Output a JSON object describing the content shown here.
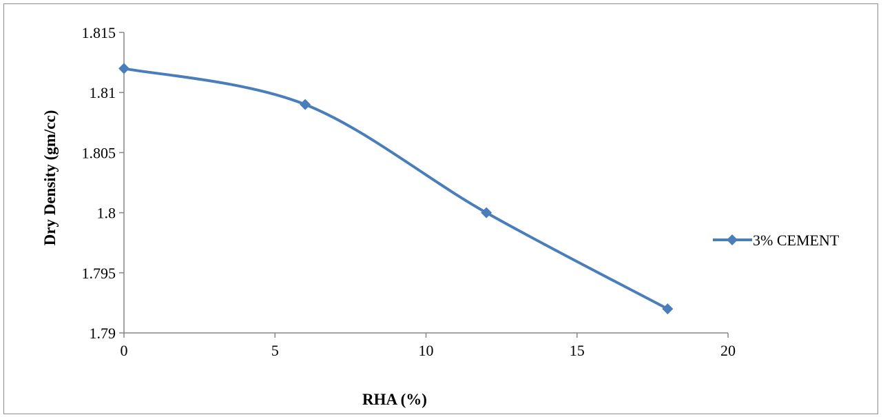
{
  "chart_data": {
    "type": "line",
    "x": [
      0,
      6,
      12,
      18
    ],
    "series": [
      {
        "name": "3% CEMENT",
        "values": [
          1.812,
          1.809,
          1.8,
          1.792
        ]
      }
    ],
    "xlabel": "RHA (%)",
    "ylabel": "Dry Density (gm/cc)",
    "xlim": [
      0,
      20
    ],
    "ylim": [
      1.79,
      1.815
    ],
    "xticks": [
      0,
      5,
      10,
      15,
      20
    ],
    "yticks": [
      1.79,
      1.795,
      1.8,
      1.805,
      1.81,
      1.815
    ],
    "xtick_labels": [
      "0",
      "5",
      "10",
      "15",
      "20"
    ],
    "ytick_labels": [
      "1.79",
      "1.795",
      "1.8",
      "1.805",
      "1.81",
      "1.815"
    ],
    "smooth": true,
    "marker": "diamond",
    "grid": false,
    "legend_position": "right",
    "colors": {
      "series": "#4a7ebb"
    }
  }
}
